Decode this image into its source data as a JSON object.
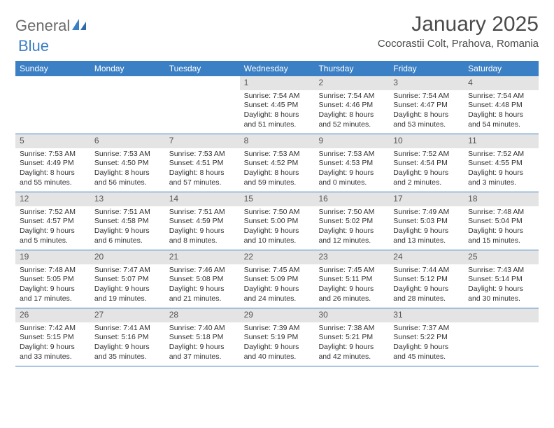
{
  "logo": {
    "part1": "General",
    "part2": "Blue"
  },
  "title": "January 2025",
  "location": "Cocorastii Colt, Prahova, Romania",
  "colors": {
    "header_bg": "#3b7fc4",
    "header_text": "#ffffff",
    "daynum_bg": "#e4e4e4",
    "border": "#3b7fc4",
    "text": "#333333",
    "logo_gray": "#6b6b6b",
    "logo_blue": "#3b7fc4"
  },
  "day_names": [
    "Sunday",
    "Monday",
    "Tuesday",
    "Wednesday",
    "Thursday",
    "Friday",
    "Saturday"
  ],
  "weeks": [
    [
      {
        "day": "",
        "sunrise": "",
        "sunset": "",
        "daylight1": "",
        "daylight2": ""
      },
      {
        "day": "",
        "sunrise": "",
        "sunset": "",
        "daylight1": "",
        "daylight2": ""
      },
      {
        "day": "",
        "sunrise": "",
        "sunset": "",
        "daylight1": "",
        "daylight2": ""
      },
      {
        "day": "1",
        "sunrise": "Sunrise: 7:54 AM",
        "sunset": "Sunset: 4:45 PM",
        "daylight1": "Daylight: 8 hours",
        "daylight2": "and 51 minutes."
      },
      {
        "day": "2",
        "sunrise": "Sunrise: 7:54 AM",
        "sunset": "Sunset: 4:46 PM",
        "daylight1": "Daylight: 8 hours",
        "daylight2": "and 52 minutes."
      },
      {
        "day": "3",
        "sunrise": "Sunrise: 7:54 AM",
        "sunset": "Sunset: 4:47 PM",
        "daylight1": "Daylight: 8 hours",
        "daylight2": "and 53 minutes."
      },
      {
        "day": "4",
        "sunrise": "Sunrise: 7:54 AM",
        "sunset": "Sunset: 4:48 PM",
        "daylight1": "Daylight: 8 hours",
        "daylight2": "and 54 minutes."
      }
    ],
    [
      {
        "day": "5",
        "sunrise": "Sunrise: 7:53 AM",
        "sunset": "Sunset: 4:49 PM",
        "daylight1": "Daylight: 8 hours",
        "daylight2": "and 55 minutes."
      },
      {
        "day": "6",
        "sunrise": "Sunrise: 7:53 AM",
        "sunset": "Sunset: 4:50 PM",
        "daylight1": "Daylight: 8 hours",
        "daylight2": "and 56 minutes."
      },
      {
        "day": "7",
        "sunrise": "Sunrise: 7:53 AM",
        "sunset": "Sunset: 4:51 PM",
        "daylight1": "Daylight: 8 hours",
        "daylight2": "and 57 minutes."
      },
      {
        "day": "8",
        "sunrise": "Sunrise: 7:53 AM",
        "sunset": "Sunset: 4:52 PM",
        "daylight1": "Daylight: 8 hours",
        "daylight2": "and 59 minutes."
      },
      {
        "day": "9",
        "sunrise": "Sunrise: 7:53 AM",
        "sunset": "Sunset: 4:53 PM",
        "daylight1": "Daylight: 9 hours",
        "daylight2": "and 0 minutes."
      },
      {
        "day": "10",
        "sunrise": "Sunrise: 7:52 AM",
        "sunset": "Sunset: 4:54 PM",
        "daylight1": "Daylight: 9 hours",
        "daylight2": "and 2 minutes."
      },
      {
        "day": "11",
        "sunrise": "Sunrise: 7:52 AM",
        "sunset": "Sunset: 4:55 PM",
        "daylight1": "Daylight: 9 hours",
        "daylight2": "and 3 minutes."
      }
    ],
    [
      {
        "day": "12",
        "sunrise": "Sunrise: 7:52 AM",
        "sunset": "Sunset: 4:57 PM",
        "daylight1": "Daylight: 9 hours",
        "daylight2": "and 5 minutes."
      },
      {
        "day": "13",
        "sunrise": "Sunrise: 7:51 AM",
        "sunset": "Sunset: 4:58 PM",
        "daylight1": "Daylight: 9 hours",
        "daylight2": "and 6 minutes."
      },
      {
        "day": "14",
        "sunrise": "Sunrise: 7:51 AM",
        "sunset": "Sunset: 4:59 PM",
        "daylight1": "Daylight: 9 hours",
        "daylight2": "and 8 minutes."
      },
      {
        "day": "15",
        "sunrise": "Sunrise: 7:50 AM",
        "sunset": "Sunset: 5:00 PM",
        "daylight1": "Daylight: 9 hours",
        "daylight2": "and 10 minutes."
      },
      {
        "day": "16",
        "sunrise": "Sunrise: 7:50 AM",
        "sunset": "Sunset: 5:02 PM",
        "daylight1": "Daylight: 9 hours",
        "daylight2": "and 12 minutes."
      },
      {
        "day": "17",
        "sunrise": "Sunrise: 7:49 AM",
        "sunset": "Sunset: 5:03 PM",
        "daylight1": "Daylight: 9 hours",
        "daylight2": "and 13 minutes."
      },
      {
        "day": "18",
        "sunrise": "Sunrise: 7:48 AM",
        "sunset": "Sunset: 5:04 PM",
        "daylight1": "Daylight: 9 hours",
        "daylight2": "and 15 minutes."
      }
    ],
    [
      {
        "day": "19",
        "sunrise": "Sunrise: 7:48 AM",
        "sunset": "Sunset: 5:05 PM",
        "daylight1": "Daylight: 9 hours",
        "daylight2": "and 17 minutes."
      },
      {
        "day": "20",
        "sunrise": "Sunrise: 7:47 AM",
        "sunset": "Sunset: 5:07 PM",
        "daylight1": "Daylight: 9 hours",
        "daylight2": "and 19 minutes."
      },
      {
        "day": "21",
        "sunrise": "Sunrise: 7:46 AM",
        "sunset": "Sunset: 5:08 PM",
        "daylight1": "Daylight: 9 hours",
        "daylight2": "and 21 minutes."
      },
      {
        "day": "22",
        "sunrise": "Sunrise: 7:45 AM",
        "sunset": "Sunset: 5:09 PM",
        "daylight1": "Daylight: 9 hours",
        "daylight2": "and 24 minutes."
      },
      {
        "day": "23",
        "sunrise": "Sunrise: 7:45 AM",
        "sunset": "Sunset: 5:11 PM",
        "daylight1": "Daylight: 9 hours",
        "daylight2": "and 26 minutes."
      },
      {
        "day": "24",
        "sunrise": "Sunrise: 7:44 AM",
        "sunset": "Sunset: 5:12 PM",
        "daylight1": "Daylight: 9 hours",
        "daylight2": "and 28 minutes."
      },
      {
        "day": "25",
        "sunrise": "Sunrise: 7:43 AM",
        "sunset": "Sunset: 5:14 PM",
        "daylight1": "Daylight: 9 hours",
        "daylight2": "and 30 minutes."
      }
    ],
    [
      {
        "day": "26",
        "sunrise": "Sunrise: 7:42 AM",
        "sunset": "Sunset: 5:15 PM",
        "daylight1": "Daylight: 9 hours",
        "daylight2": "and 33 minutes."
      },
      {
        "day": "27",
        "sunrise": "Sunrise: 7:41 AM",
        "sunset": "Sunset: 5:16 PM",
        "daylight1": "Daylight: 9 hours",
        "daylight2": "and 35 minutes."
      },
      {
        "day": "28",
        "sunrise": "Sunrise: 7:40 AM",
        "sunset": "Sunset: 5:18 PM",
        "daylight1": "Daylight: 9 hours",
        "daylight2": "and 37 minutes."
      },
      {
        "day": "29",
        "sunrise": "Sunrise: 7:39 AM",
        "sunset": "Sunset: 5:19 PM",
        "daylight1": "Daylight: 9 hours",
        "daylight2": "and 40 minutes."
      },
      {
        "day": "30",
        "sunrise": "Sunrise: 7:38 AM",
        "sunset": "Sunset: 5:21 PM",
        "daylight1": "Daylight: 9 hours",
        "daylight2": "and 42 minutes."
      },
      {
        "day": "31",
        "sunrise": "Sunrise: 7:37 AM",
        "sunset": "Sunset: 5:22 PM",
        "daylight1": "Daylight: 9 hours",
        "daylight2": "and 45 minutes."
      },
      {
        "day": "",
        "sunrise": "",
        "sunset": "",
        "daylight1": "",
        "daylight2": ""
      }
    ]
  ]
}
